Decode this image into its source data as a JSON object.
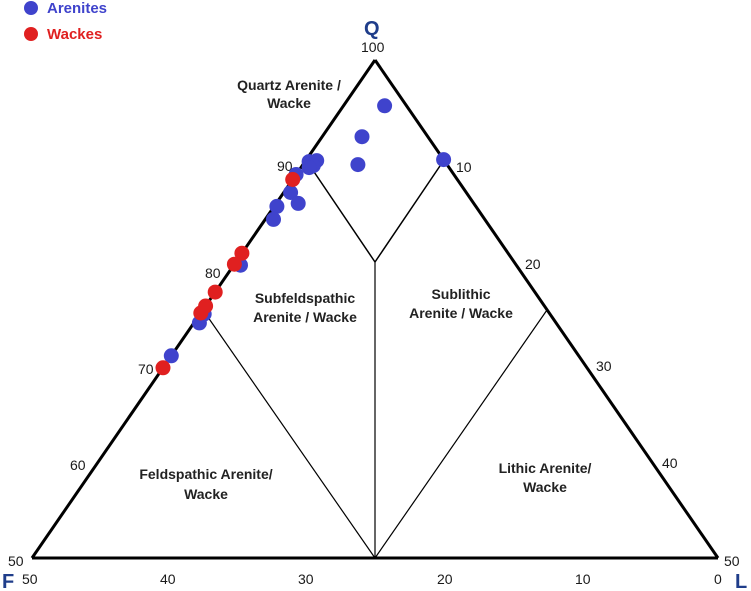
{
  "chart_data": {
    "type": "scatter",
    "subtype": "ternary",
    "title": "",
    "apices": {
      "top": "Q",
      "left": "F",
      "right": "L"
    },
    "legend": {
      "placement": "top-left",
      "entries": [
        {
          "name": "Arenites",
          "color": "#3f43cc"
        },
        {
          "name": "Wackes",
          "color": "#e02020"
        }
      ]
    },
    "ticks": {
      "q_axis": [
        "100",
        "90",
        "80",
        "70",
        "60",
        "50"
      ],
      "l_axis": [
        "10",
        "20",
        "30",
        "40",
        "50"
      ],
      "bottom": [
        "50",
        "40",
        "30",
        "20",
        "10",
        "0"
      ]
    },
    "fields": [
      {
        "name": "quartz-arenite",
        "label_lines": [
          "Quartz Arenite /",
          "Wacke"
        ]
      },
      {
        "name": "subfeldspathic",
        "label_lines": [
          "Subfeldspathic",
          "Arenite / Wacke"
        ]
      },
      {
        "name": "sublithic",
        "label_lines": [
          "Sublithic",
          "Arenite / Wacke"
        ]
      },
      {
        "name": "feldspathic",
        "label_lines": [
          "Feldspathic Arenite/",
          "Wacke"
        ]
      },
      {
        "name": "lithic",
        "label_lines": [
          "Lithic Arenite/",
          "Wacke"
        ]
      }
    ],
    "series": [
      {
        "name": "Arenites",
        "color": "#3f43cc",
        "points": [
          {
            "Q": 95.4,
            "L": 3.0
          },
          {
            "Q": 92.3,
            "L": 2.9
          },
          {
            "Q": 90.0,
            "L": 10.0
          },
          {
            "Q": 89.5,
            "L": 4.0
          },
          {
            "Q": 89.8,
            "L": 0.3
          },
          {
            "Q": 89.9,
            "L": 0.8
          },
          {
            "Q": 89.4,
            "L": 0.8
          },
          {
            "Q": 89.2,
            "L": 0.6
          },
          {
            "Q": 88.5,
            "L": 0.0
          },
          {
            "Q": 86.7,
            "L": 0.5
          },
          {
            "Q": 85.6,
            "L": 1.6
          },
          {
            "Q": 85.3,
            "L": 0.2
          },
          {
            "Q": 84.0,
            "L": 0.6
          },
          {
            "Q": 79.4,
            "L": 0.5
          },
          {
            "Q": 74.5,
            "L": 0.3
          },
          {
            "Q": 73.6,
            "L": 0.4
          },
          {
            "Q": 70.3,
            "L": 0.0
          }
        ]
      },
      {
        "name": "Wackes",
        "color": "#e02020",
        "points": [
          {
            "Q": 88.0,
            "L": 0.0
          },
          {
            "Q": 80.6,
            "L": 0.0
          },
          {
            "Q": 79.5,
            "L": 0.0
          },
          {
            "Q": 76.7,
            "L": 0.0
          },
          {
            "Q": 75.3,
            "L": 0.0
          },
          {
            "Q": 74.6,
            "L": 0.0
          },
          {
            "Q": 69.1,
            "L": 0.0
          }
        ]
      }
    ]
  }
}
